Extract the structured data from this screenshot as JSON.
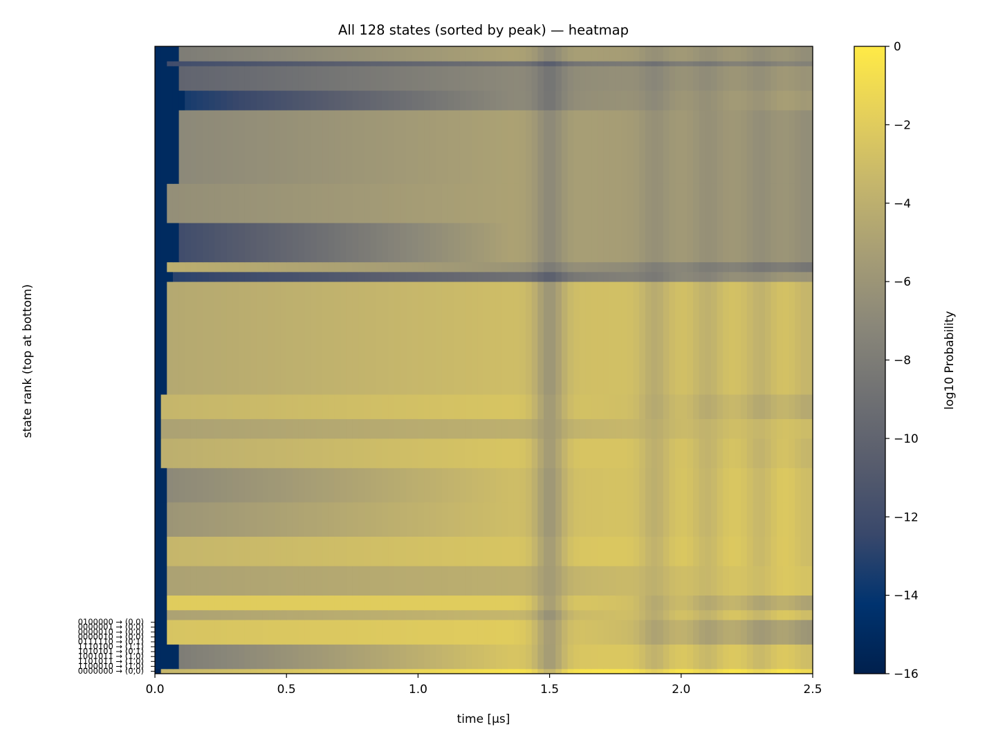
{
  "chart_data": {
    "type": "heatmap",
    "title": "All 128 states (sorted by peak) — heatmap",
    "xlabel": "time [μs]",
    "ylabel": "state rank (top at bottom)",
    "xlim": [
      0.0,
      2.5
    ],
    "x_ticks": [
      "0.0",
      "0.5",
      "1.0",
      "1.5",
      "2.0",
      "2.5"
    ],
    "y_tick_labels": [
      "0000000 → (0,0)",
      "1100010 → (1,0)",
      "1101011 → (1,0)",
      "1001011 → (1,0)",
      "1010101 → (0,1)",
      "1110100 → (1,1)",
      "0111110 → (0,1)",
      "0000010 → (0,0)",
      "0000010 → (0,0)",
      "0000001 → (0,0)",
      "0100000 → (0,0)"
    ],
    "colorbar": {
      "label": "log10 Probability",
      "range": [
        -16,
        0
      ],
      "ticks": [
        "0",
        "−2",
        "−4",
        "−6",
        "−8",
        "−10",
        "−12",
        "−14",
        "−16"
      ],
      "colormap": "cividis",
      "colors": [
        "#00204d",
        "#00336f",
        "#39486b",
        "#575c6d",
        "#707173",
        "#8a8779",
        "#a69d75",
        "#c4b56c",
        "#e4cf5b",
        "#ffea46"
      ]
    },
    "n_states": 128,
    "band_rows": [
      {
        "from_rank": 1,
        "to_rank": 1,
        "onset_us": 0.02,
        "early": -15.5,
        "start": -3.5,
        "mid": -0.6,
        "end": -0.2
      },
      {
        "from_rank": 2,
        "to_rank": 6,
        "onset_us": 0.08,
        "early": -15.0,
        "start": -8.0,
        "mid": -2.5,
        "end": -2.0
      },
      {
        "from_rank": 7,
        "to_rank": 11,
        "onset_us": 0.05,
        "early": -15.0,
        "start": -2.5,
        "mid": -2.0,
        "end": -5.0
      },
      {
        "from_rank": 12,
        "to_rank": 13,
        "onset_us": 0.05,
        "early": -15.0,
        "start": -5.0,
        "mid": -3.5,
        "end": -2.0
      },
      {
        "from_rank": 14,
        "to_rank": 16,
        "onset_us": 0.04,
        "early": -15.0,
        "start": -2.0,
        "mid": -2.0,
        "end": -4.0
      },
      {
        "from_rank": 17,
        "to_rank": 22,
        "onset_us": 0.05,
        "early": -15.0,
        "start": -5.0,
        "mid": -4.0,
        "end": -2.0
      },
      {
        "from_rank": 23,
        "to_rank": 28,
        "onset_us": 0.04,
        "early": -15.0,
        "start": -3.5,
        "mid": -2.5,
        "end": -2.0
      },
      {
        "from_rank": 29,
        "to_rank": 35,
        "onset_us": 0.04,
        "early": -15.0,
        "start": -6.0,
        "mid": -3.0,
        "end": -2.0
      },
      {
        "from_rank": 36,
        "to_rank": 42,
        "onset_us": 0.04,
        "early": -15.0,
        "start": -7.0,
        "mid": -3.0,
        "end": -2.0
      },
      {
        "from_rank": 43,
        "to_rank": 48,
        "onset_us": 0.03,
        "early": -15.0,
        "start": -4.0,
        "mid": -2.5,
        "end": -2.5
      },
      {
        "from_rank": 49,
        "to_rank": 52,
        "onset_us": 0.03,
        "early": -15.0,
        "start": -5.0,
        "mid": -4.0,
        "end": -2.5
      },
      {
        "from_rank": 53,
        "to_rank": 57,
        "onset_us": 0.03,
        "early": -15.0,
        "start": -3.5,
        "mid": -2.5,
        "end": -3.5
      },
      {
        "from_rank": 58,
        "to_rank": 80,
        "onset_us": 0.04,
        "early": -15.0,
        "start": -4.5,
        "mid": -3.0,
        "end": -2.5
      },
      {
        "from_rank": 81,
        "to_rank": 82,
        "onset_us": 0.06,
        "early": -15.0,
        "start": -13.0,
        "mid": -9.0,
        "end": -5.5
      },
      {
        "from_rank": 83,
        "to_rank": 84,
        "onset_us": 0.04,
        "early": -15.0,
        "start": -4.0,
        "mid": -6.0,
        "end": -8.0
      },
      {
        "from_rank": 85,
        "to_rank": 92,
        "onset_us": 0.1,
        "early": -15.0,
        "start": -12.0,
        "mid": -5.0,
        "end": -6.0
      },
      {
        "from_rank": 93,
        "to_rank": 100,
        "onset_us": 0.04,
        "early": -15.0,
        "start": -6.5,
        "mid": -5.0,
        "end": -6.0
      },
      {
        "from_rank": 101,
        "to_rank": 115,
        "onset_us": 0.08,
        "early": -15.0,
        "start": -7.0,
        "mid": -5.0,
        "end": -6.0
      },
      {
        "from_rank": 116,
        "to_rank": 119,
        "onset_us": 0.12,
        "early": -15.0,
        "start": -13.5,
        "mid": -7.0,
        "end": -5.0
      },
      {
        "from_rank": 120,
        "to_rank": 124,
        "onset_us": 0.08,
        "early": -15.0,
        "start": -10.0,
        "mid": -7.0,
        "end": -5.5
      },
      {
        "from_rank": 125,
        "to_rank": 125,
        "onset_us": 0.05,
        "early": -15.0,
        "start": -12.0,
        "mid": -9.0,
        "end": -7.0
      },
      {
        "from_rank": 126,
        "to_rank": 128,
        "onset_us": 0.08,
        "early": -15.0,
        "start": -8.0,
        "mid": -5.0,
        "end": -6.0
      }
    ],
    "dip_times_us": [
      1.5,
      1.9,
      2.1,
      2.3,
      2.48
    ],
    "dip_depth": [
      3.0,
      1.5,
      1.2,
      1.2,
      1.0
    ]
  }
}
